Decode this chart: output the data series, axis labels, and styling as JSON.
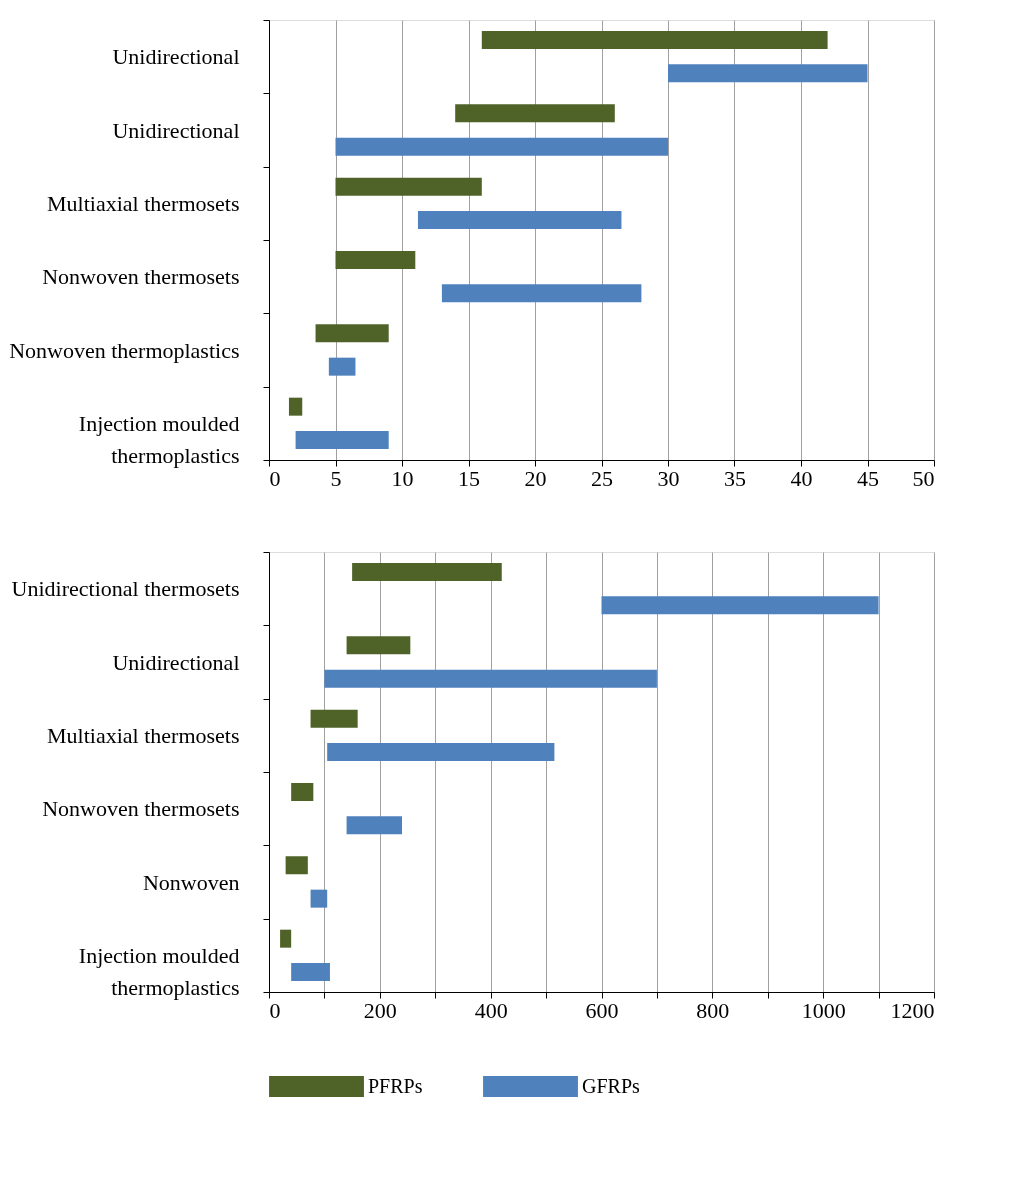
{
  "chart_data": [
    {
      "type": "bar",
      "orientation": "horizontal",
      "categories": [
        "Unidirectional",
        "Unidirectional",
        "Multiaxial thermosets",
        "Nonwoven thermosets",
        "Nonwoven thermoplastics",
        "Injection moulded thermoplastics"
      ],
      "series": [
        {
          "color": "#4f6228",
          "base": [
            16,
            14,
            5,
            5,
            3.5,
            1.5
          ],
          "values": [
            26,
            12,
            11,
            6,
            5.5,
            1
          ]
        },
        {
          "color": "#4f81bd",
          "base": [
            30,
            5,
            11.2,
            13,
            4.5,
            2
          ],
          "values": [
            15,
            25,
            15.3,
            15,
            2,
            7
          ]
        }
      ],
      "xlim": [
        0,
        50
      ],
      "xticks": [
        0,
        5,
        10,
        15,
        20,
        25,
        30,
        35,
        40,
        45,
        50
      ],
      "grid": "x",
      "legend": false
    },
    {
      "type": "bar",
      "orientation": "horizontal",
      "categories": [
        "Unidirectional thermosets",
        "Unidirectional",
        "Multiaxial thermosets",
        "Nonwoven thermosets",
        "Nonwoven",
        "Injection moulded thermoplastics"
      ],
      "series": [
        {
          "name": "PFRPs",
          "color": "#4f6228",
          "base": [
            150,
            140,
            75,
            40,
            30,
            20
          ],
          "values": [
            270,
            115,
            85,
            40,
            40,
            20
          ]
        },
        {
          "name": "GFRPs",
          "color": "#4f81bd",
          "base": [
            600,
            100,
            105,
            140,
            75,
            40
          ],
          "values": [
            500,
            600,
            410,
            100,
            30,
            70
          ]
        }
      ],
      "xlim": [
        0,
        1200
      ],
      "xticks": [
        0,
        {
          "value": 100,
          "label": null
        },
        200,
        {
          "value": 300,
          "label": null
        },
        400,
        {
          "value": 500,
          "label": null
        },
        600,
        {
          "value": 700,
          "label": null
        },
        800,
        {
          "value": 900,
          "label": null
        },
        1000,
        {
          "value": 1100,
          "label": null
        },
        1200
      ],
      "grid": "x",
      "legend": "bottom"
    }
  ]
}
